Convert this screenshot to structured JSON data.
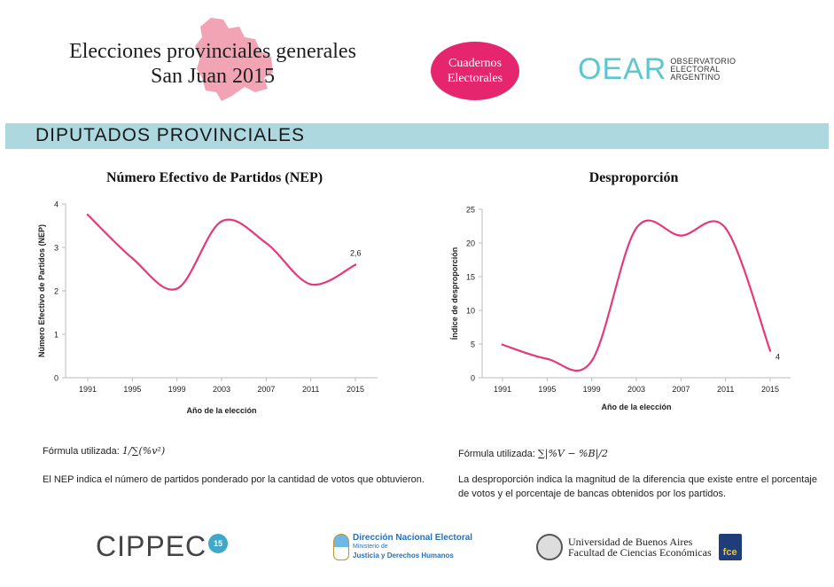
{
  "header": {
    "title_line1": "Elecciones provinciales generales",
    "title_line2": "San Juan 2015",
    "badge_line1": "Cuadernos",
    "badge_line2": "Electorales",
    "org_logo": "OEAR",
    "org_line1": "OBSERVATORIO",
    "org_line2": "ELECTORAL",
    "org_line3": "ARGENTINO",
    "map_color": "#f2a4b5"
  },
  "section": {
    "title": "DIPUTADOS PROVINCIALES",
    "bar_color": "#aed8e0"
  },
  "chart_data": [
    {
      "type": "line",
      "title": "Número Efectivo de Partidos (NEP)",
      "xlabel": "Año de la elección",
      "ylabel": "Número Efectivo de Partidos (NEP)",
      "x": [
        1991,
        1995,
        1999,
        2003,
        2007,
        2011,
        2015
      ],
      "xlim": [
        1991,
        2015
      ],
      "ylim": [
        0,
        4
      ],
      "yticks": [
        0,
        1,
        2,
        3,
        4
      ],
      "series": [
        {
          "name": "NEP",
          "values": [
            3.75,
            2.75,
            2.05,
            3.6,
            3.1,
            2.15,
            2.6
          ],
          "color": "#e5397e"
        }
      ],
      "end_label": "2,6",
      "grid": false
    },
    {
      "type": "line",
      "title": "Desproporción",
      "xlabel": "Año de la elección",
      "ylabel": "Índice de desproporción",
      "x": [
        1991,
        1995,
        1999,
        2003,
        2007,
        2011,
        2015
      ],
      "xlim": [
        1991,
        2015
      ],
      "ylim": [
        0,
        25
      ],
      "yticks": [
        0,
        5,
        10,
        15,
        20,
        25
      ],
      "series": [
        {
          "name": "Desproporción",
          "values": [
            4.9,
            2.8,
            2.5,
            22.2,
            21.1,
            22.2,
            4.0
          ],
          "color": "#e5397e"
        }
      ],
      "end_label": "4",
      "grid": false
    }
  ],
  "nep_info": {
    "formula_label": "Fórmula utilizada:",
    "formula": "1/∑(%v²)",
    "description": "El NEP indica el número de partidos ponderado por la cantidad de votos que obtuvieron."
  },
  "desp_info": {
    "formula_label": "Fórmula utilizada:",
    "formula": "∑|%V − %B|/2",
    "description": "La desproporción indica la magnitud de la diferencia que existe entre el porcentaje de votos y el porcentaje de bancas obtenidos por los partidos."
  },
  "footer": {
    "cippec": "CIPPEC",
    "cippec_badge": "15",
    "dine_line1": "Dirección Nacional Electoral",
    "dine_line2": "Ministerio de",
    "dine_line3": "Justicia y Derechos Humanos",
    "uba_line1": "Universidad de Buenos Aires",
    "uba_line2": "Facultad de Ciencias Económicas",
    "fce": "fce"
  }
}
